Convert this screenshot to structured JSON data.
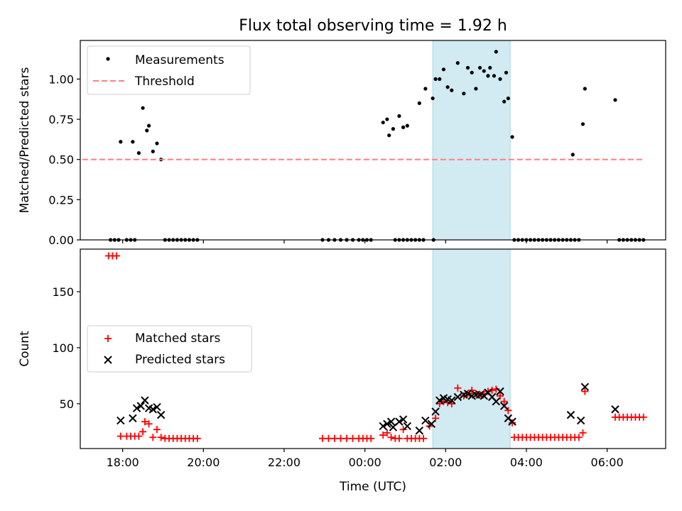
{
  "figure": {
    "title": "Flux total observing time = 1.92 h"
  },
  "colors": {
    "measurement": "#000000",
    "threshold": "#ff7f7f",
    "matched": "#ff0000",
    "predicted": "#000000",
    "span": "#add8e6"
  },
  "chart_data": [
    {
      "type": "scatter",
      "panel": "top",
      "title": "Flux total observing time = 1.92 h",
      "xlabel": "",
      "ylabel": "Matched/Predicted stars",
      "x_unit": "hours since 00:00 UTC",
      "xlim": [
        -7.05,
        7.45
      ],
      "ylim": [
        0,
        1.24
      ],
      "yticks": [
        0.0,
        0.25,
        0.5,
        0.75,
        1.0
      ],
      "yticklabels": [
        "0.00",
        "0.25",
        "0.50",
        "0.75",
        "1.00"
      ],
      "grid": false,
      "legend": "upper left",
      "highlight_span": [
        1.68,
        3.6
      ],
      "series": [
        {
          "name": "Measurements",
          "marker": "dot",
          "points": [
            [
              -6.3,
              0
            ],
            [
              -6.2,
              0
            ],
            [
              -6.1,
              0
            ],
            [
              -6.05,
              0.61
            ],
            [
              -5.9,
              0
            ],
            [
              -5.8,
              0
            ],
            [
              -5.7,
              0
            ],
            [
              -5.75,
              0.61
            ],
            [
              -5.6,
              0.54
            ],
            [
              -5.5,
              0.82
            ],
            [
              -5.4,
              0.68
            ],
            [
              -5.35,
              0.71
            ],
            [
              -5.25,
              0.55
            ],
            [
              -5.15,
              0.6
            ],
            [
              -5.05,
              0.5
            ],
            [
              -4.95,
              0
            ],
            [
              -4.85,
              0
            ],
            [
              -4.75,
              0
            ],
            [
              -4.65,
              0
            ],
            [
              -4.55,
              0
            ],
            [
              -4.45,
              0
            ],
            [
              -4.35,
              0
            ],
            [
              -4.25,
              0
            ],
            [
              -4.15,
              0
            ],
            [
              -1.05,
              0
            ],
            [
              -0.9,
              0
            ],
            [
              -0.75,
              0
            ],
            [
              -0.6,
              0
            ],
            [
              -0.45,
              0
            ],
            [
              -0.3,
              0
            ],
            [
              -0.15,
              0
            ],
            [
              -0.05,
              0
            ],
            [
              0.05,
              0
            ],
            [
              0.15,
              0
            ],
            [
              0.45,
              0.73
            ],
            [
              0.55,
              0.75
            ],
            [
              0.6,
              0.65
            ],
            [
              0.7,
              0.69
            ],
            [
              0.85,
              0.77
            ],
            [
              0.95,
              0.7
            ],
            [
              1.05,
              0.71
            ],
            [
              0.75,
              0
            ],
            [
              0.85,
              0
            ],
            [
              0.95,
              0
            ],
            [
              1.05,
              0
            ],
            [
              1.15,
              0
            ],
            [
              1.25,
              0
            ],
            [
              1.35,
              0
            ],
            [
              1.45,
              0
            ],
            [
              1.7,
              0
            ],
            [
              1.35,
              0.85
            ],
            [
              1.5,
              0.94
            ],
            [
              1.68,
              0.88
            ],
            [
              1.75,
              1.0
            ],
            [
              1.85,
              1.0
            ],
            [
              1.95,
              1.06
            ],
            [
              2.05,
              0.95
            ],
            [
              2.15,
              0.93
            ],
            [
              2.3,
              1.1
            ],
            [
              2.45,
              0.91
            ],
            [
              2.55,
              1.07
            ],
            [
              2.65,
              1.04
            ],
            [
              2.75,
              0.94
            ],
            [
              2.85,
              1.07
            ],
            [
              2.95,
              1.05
            ],
            [
              3.05,
              1.02
            ],
            [
              3.1,
              1.07
            ],
            [
              3.2,
              1.02
            ],
            [
              3.25,
              1.17
            ],
            [
              3.35,
              1.0
            ],
            [
              3.45,
              0.86
            ],
            [
              3.5,
              1.04
            ],
            [
              3.55,
              0.88
            ],
            [
              3.65,
              0.64
            ],
            [
              3.7,
              0
            ],
            [
              3.8,
              0
            ],
            [
              3.9,
              0
            ],
            [
              4.0,
              0
            ],
            [
              4.1,
              0
            ],
            [
              4.2,
              0
            ],
            [
              4.3,
              0
            ],
            [
              4.4,
              0
            ],
            [
              4.5,
              0
            ],
            [
              4.6,
              0
            ],
            [
              4.7,
              0
            ],
            [
              4.8,
              0
            ],
            [
              4.9,
              0
            ],
            [
              5.0,
              0
            ],
            [
              5.1,
              0
            ],
            [
              5.2,
              0
            ],
            [
              5.3,
              0
            ],
            [
              5.15,
              0.53
            ],
            [
              5.4,
              0.72
            ],
            [
              5.45,
              0.94
            ],
            [
              6.2,
              0.87
            ],
            [
              6.3,
              0
            ],
            [
              6.4,
              0
            ],
            [
              6.5,
              0
            ],
            [
              6.6,
              0
            ],
            [
              6.7,
              0
            ],
            [
              6.8,
              0
            ],
            [
              6.9,
              0
            ]
          ]
        },
        {
          "name": "Threshold",
          "style": "dashed",
          "x": [
            -7.0,
            6.9
          ],
          "y": [
            0.5,
            0.5
          ]
        }
      ]
    },
    {
      "type": "scatter",
      "panel": "bottom",
      "title": "",
      "xlabel": "Time (UTC)",
      "ylabel": "Count",
      "x_unit": "hours since 00:00 UTC",
      "xlim": [
        -7.05,
        7.45
      ],
      "ylim": [
        10,
        188
      ],
      "yticks": [
        50,
        100,
        150
      ],
      "yticklabels": [
        "50",
        "100",
        "150"
      ],
      "xticks": [
        -6,
        -4,
        -2,
        0,
        2,
        4,
        6
      ],
      "xticklabels": [
        "18:00",
        "20:00",
        "22:00",
        "00:00",
        "02:00",
        "04:00",
        "06:00"
      ],
      "grid": false,
      "legend": "center left",
      "highlight_span": [
        1.68,
        3.6
      ],
      "series": [
        {
          "name": "Matched stars",
          "marker": "plus",
          "points": [
            [
              -6.35,
              182
            ],
            [
              -6.25,
              182
            ],
            [
              -6.15,
              182
            ],
            [
              -6.05,
              21
            ],
            [
              -5.9,
              21
            ],
            [
              -5.8,
              21
            ],
            [
              -5.7,
              21
            ],
            [
              -5.6,
              21
            ],
            [
              -5.5,
              25
            ],
            [
              -5.45,
              34
            ],
            [
              -5.35,
              32
            ],
            [
              -5.25,
              20
            ],
            [
              -5.15,
              27
            ],
            [
              -5.05,
              20
            ],
            [
              -4.95,
              19
            ],
            [
              -4.85,
              19
            ],
            [
              -4.75,
              19
            ],
            [
              -4.65,
              19
            ],
            [
              -4.55,
              19
            ],
            [
              -4.45,
              19
            ],
            [
              -4.35,
              19
            ],
            [
              -4.25,
              19
            ],
            [
              -4.15,
              19
            ],
            [
              -1.05,
              19
            ],
            [
              -0.9,
              19
            ],
            [
              -0.75,
              19
            ],
            [
              -0.6,
              19
            ],
            [
              -0.45,
              19
            ],
            [
              -0.3,
              19
            ],
            [
              -0.15,
              19
            ],
            [
              -0.05,
              19
            ],
            [
              0.05,
              19
            ],
            [
              0.15,
              19
            ],
            [
              0.45,
              22
            ],
            [
              0.55,
              24
            ],
            [
              0.65,
              20
            ],
            [
              0.75,
              19
            ],
            [
              0.85,
              19
            ],
            [
              0.95,
              27
            ],
            [
              1.05,
              19
            ],
            [
              1.15,
              19
            ],
            [
              1.25,
              19
            ],
            [
              1.35,
              19
            ],
            [
              1.45,
              19
            ],
            [
              1.6,
              30
            ],
            [
              1.75,
              37
            ],
            [
              1.85,
              50
            ],
            [
              1.95,
              52
            ],
            [
              2.05,
              51
            ],
            [
              2.15,
              50
            ],
            [
              2.3,
              64
            ],
            [
              2.45,
              57
            ],
            [
              2.55,
              59
            ],
            [
              2.65,
              62
            ],
            [
              2.75,
              59
            ],
            [
              2.85,
              58
            ],
            [
              2.95,
              59
            ],
            [
              3.05,
              61
            ],
            [
              3.15,
              62
            ],
            [
              3.25,
              63
            ],
            [
              3.35,
              57
            ],
            [
              3.45,
              52
            ],
            [
              3.55,
              44
            ],
            [
              3.65,
              33
            ],
            [
              3.7,
              20
            ],
            [
              3.8,
              20
            ],
            [
              3.9,
              20
            ],
            [
              4.0,
              20
            ],
            [
              4.1,
              20
            ],
            [
              4.2,
              20
            ],
            [
              4.3,
              20
            ],
            [
              4.4,
              20
            ],
            [
              4.5,
              20
            ],
            [
              4.6,
              20
            ],
            [
              4.7,
              20
            ],
            [
              4.8,
              20
            ],
            [
              4.9,
              20
            ],
            [
              5.0,
              20
            ],
            [
              5.1,
              20
            ],
            [
              5.2,
              20
            ],
            [
              5.3,
              20
            ],
            [
              5.4,
              24
            ],
            [
              5.45,
              61
            ],
            [
              6.2,
              38
            ],
            [
              6.3,
              38
            ],
            [
              6.4,
              38
            ],
            [
              6.5,
              38
            ],
            [
              6.6,
              38
            ],
            [
              6.7,
              38
            ],
            [
              6.8,
              38
            ],
            [
              6.9,
              38
            ]
          ]
        },
        {
          "name": "Predicted stars",
          "marker": "x",
          "points": [
            [
              -6.05,
              35
            ],
            [
              -5.75,
              37
            ],
            [
              -5.65,
              46
            ],
            [
              -5.55,
              48
            ],
            [
              -5.45,
              53
            ],
            [
              -5.35,
              46
            ],
            [
              -5.25,
              45
            ],
            [
              -5.15,
              47
            ],
            [
              -5.05,
              40
            ],
            [
              0.45,
              30
            ],
            [
              0.55,
              32
            ],
            [
              0.65,
              34
            ],
            [
              0.7,
              29
            ],
            [
              0.85,
              34
            ],
            [
              0.95,
              36
            ],
            [
              1.05,
              30
            ],
            [
              1.35,
              26
            ],
            [
              1.5,
              35
            ],
            [
              1.65,
              32
            ],
            [
              1.75,
              43
            ],
            [
              1.85,
              53
            ],
            [
              1.95,
              55
            ],
            [
              2.05,
              54
            ],
            [
              2.15,
              53
            ],
            [
              2.3,
              56
            ],
            [
              2.45,
              58
            ],
            [
              2.55,
              59
            ],
            [
              2.65,
              57
            ],
            [
              2.75,
              58
            ],
            [
              2.85,
              58
            ],
            [
              2.95,
              57
            ],
            [
              3.05,
              60
            ],
            [
              3.15,
              56
            ],
            [
              3.25,
              52
            ],
            [
              3.35,
              61
            ],
            [
              3.45,
              48
            ],
            [
              3.55,
              37
            ],
            [
              3.65,
              34
            ],
            [
              5.1,
              40
            ],
            [
              5.35,
              35
            ],
            [
              5.45,
              65
            ],
            [
              6.2,
              45
            ]
          ]
        }
      ]
    }
  ]
}
